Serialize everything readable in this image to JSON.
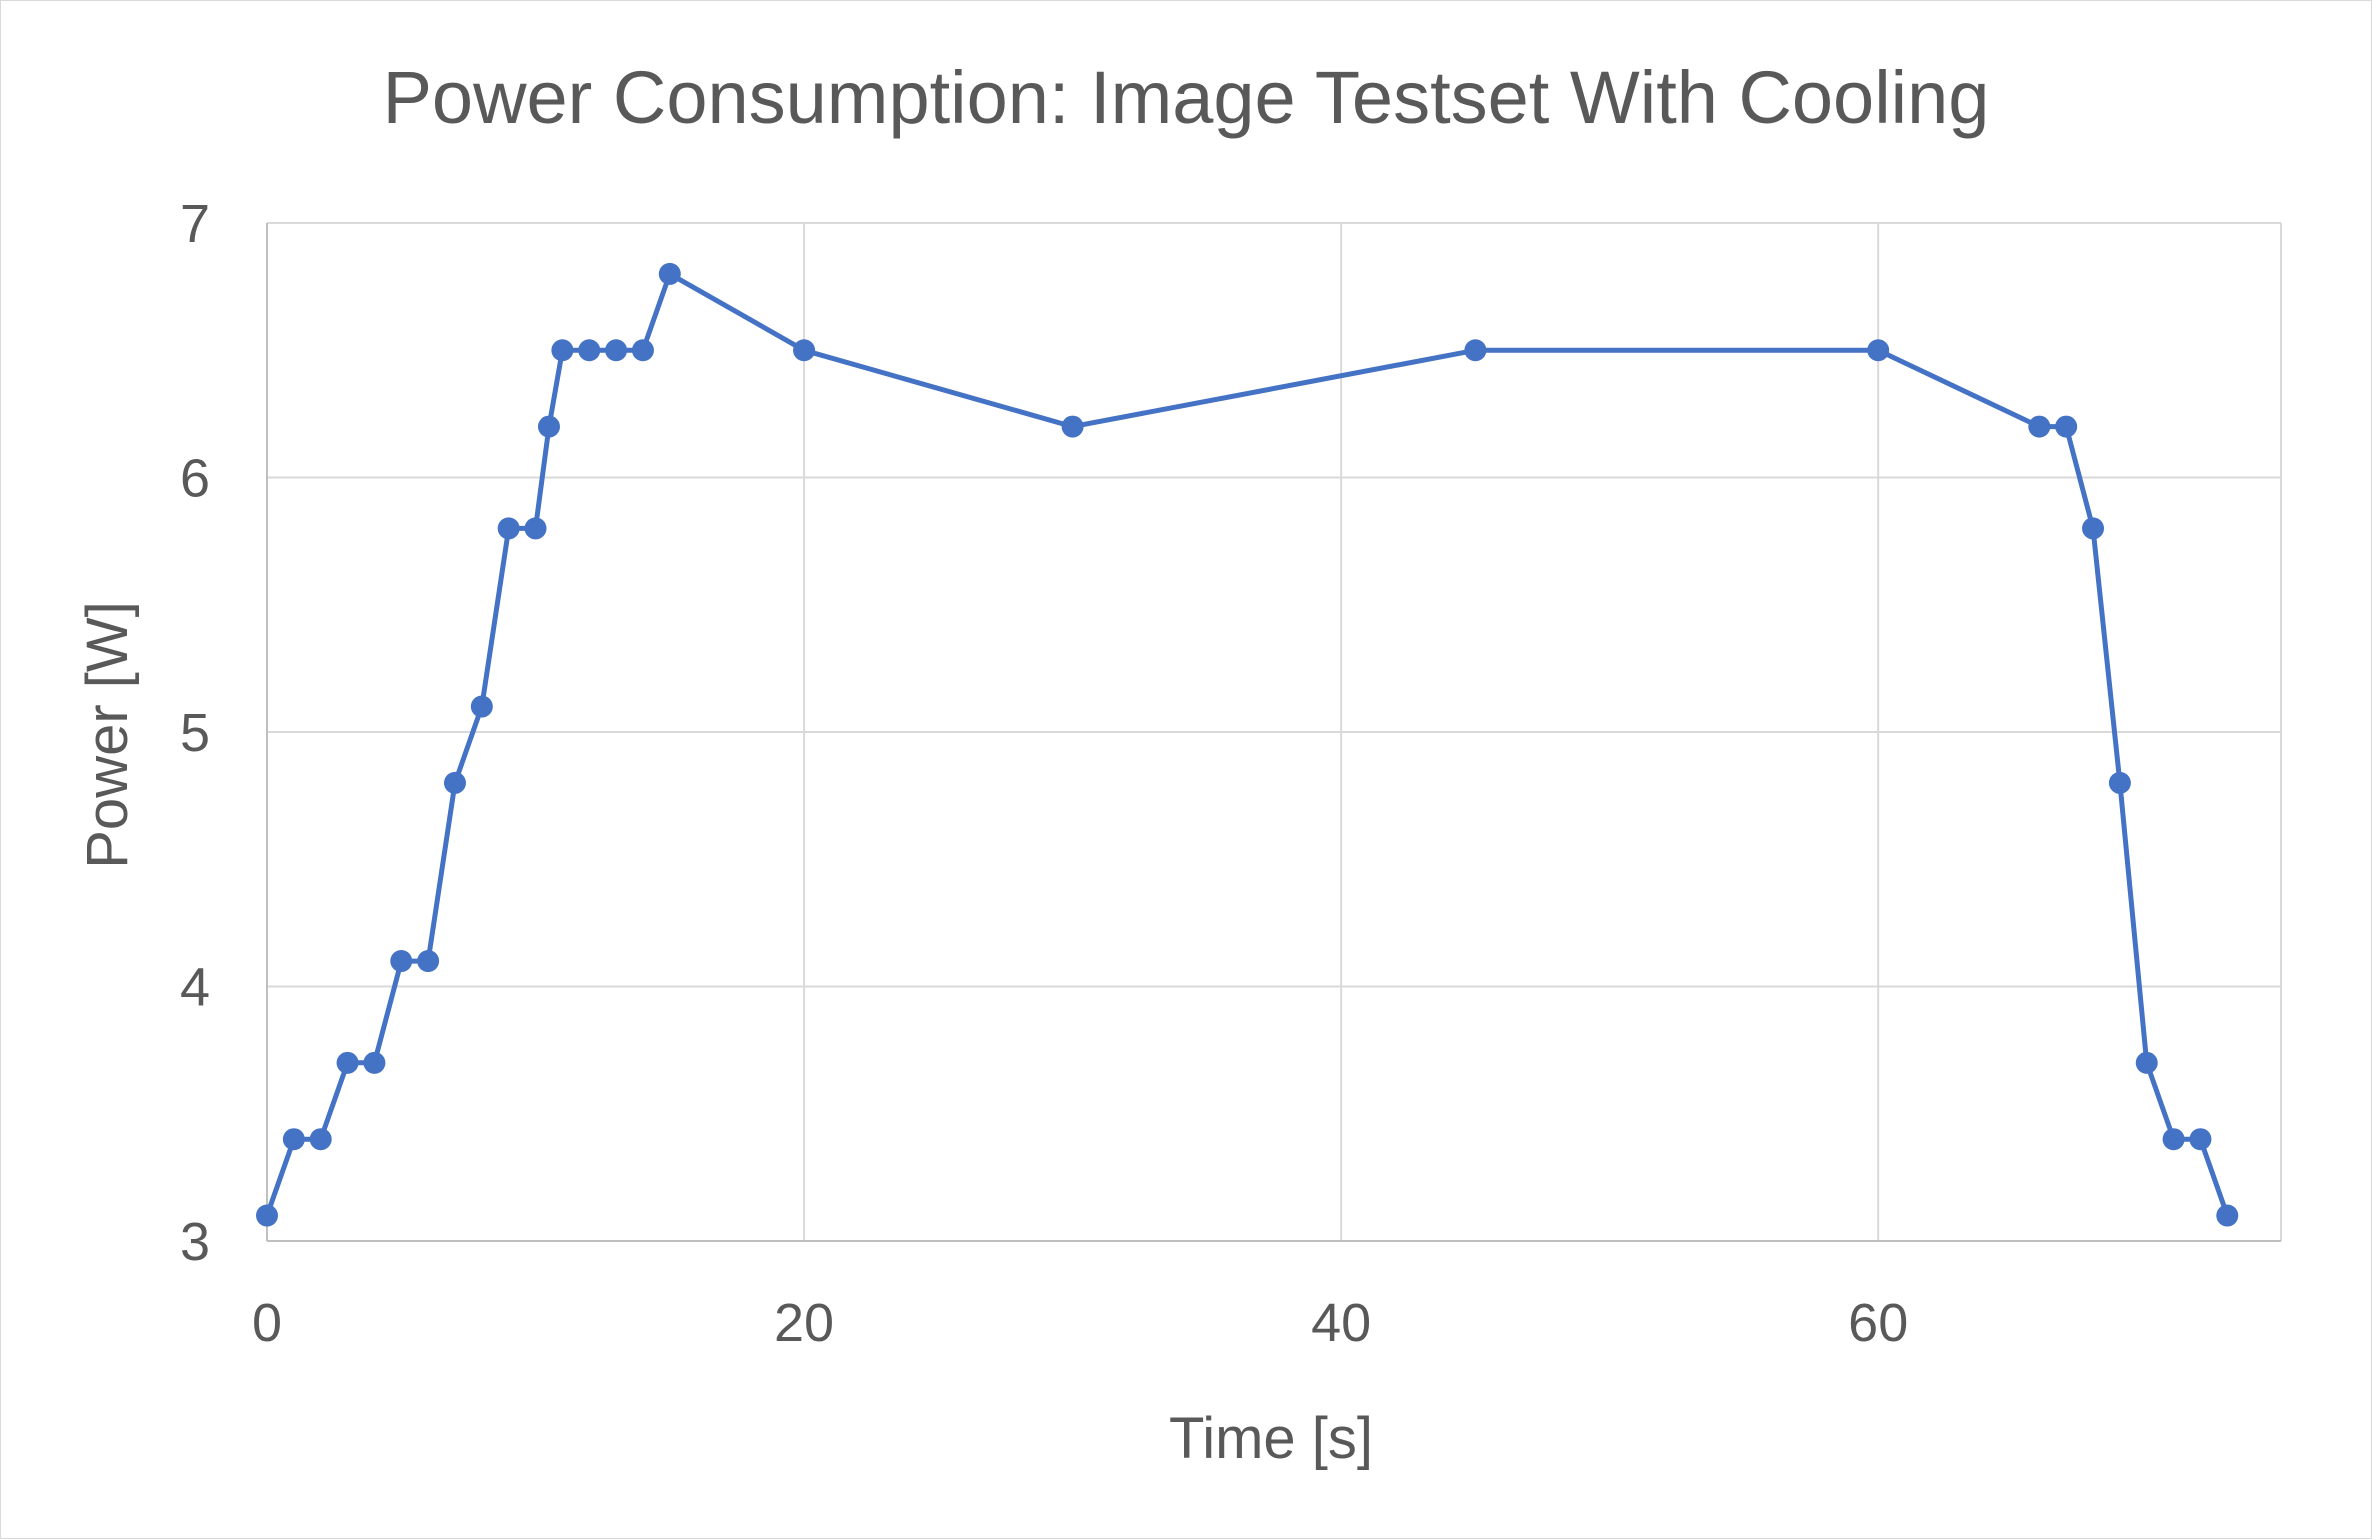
{
  "chart_data": {
    "type": "line",
    "title": "Power Consumption:  Image Testset With Cooling",
    "xlabel": "Time [s]",
    "ylabel": "Power [W]",
    "xlim": [
      0,
      75
    ],
    "ylim": [
      3,
      7
    ],
    "x_ticks": [
      0,
      20,
      40,
      60
    ],
    "y_ticks": [
      3,
      4,
      5,
      6,
      7
    ],
    "grid": true,
    "legend": "none",
    "colors": {
      "series": "#4472c4",
      "text": "#595959",
      "grid": "#d9d9d9"
    },
    "series": [
      {
        "marker": "circle",
        "x": [
          0,
          1,
          2,
          3,
          4,
          5,
          6,
          7,
          8,
          9,
          10,
          10.5,
          11,
          12,
          13,
          14,
          15,
          20,
          30,
          45,
          60,
          66,
          67,
          68,
          69,
          70,
          71,
          72,
          73
        ],
        "y": [
          3.1,
          3.4,
          3.4,
          3.7,
          3.7,
          4.1,
          4.1,
          4.8,
          5.1,
          5.8,
          5.8,
          6.2,
          6.5,
          6.5,
          6.5,
          6.5,
          6.8,
          6.5,
          6.2,
          6.5,
          6.5,
          6.2,
          6.2,
          5.8,
          4.8,
          3.7,
          3.4,
          3.4,
          3.1
        ]
      }
    ]
  }
}
